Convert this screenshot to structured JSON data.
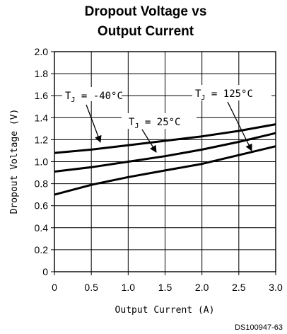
{
  "chart_data": {
    "type": "line",
    "title_line1": "Dropout Voltage vs",
    "title_line2": "Output Current",
    "xlabel": "Output Current (A)",
    "ylabel": "Dropout Voltage (V)",
    "xlim": [
      0,
      3.0
    ],
    "ylim": [
      0,
      2.0
    ],
    "x_ticks": [
      "0",
      "0.5",
      "1.0",
      "1.5",
      "2.0",
      "2.5",
      "3.0"
    ],
    "y_ticks": [
      "0",
      "0.2",
      "0.4",
      "0.6",
      "0.8",
      "1.0",
      "1.2",
      "1.4",
      "1.6",
      "1.8",
      "2.0"
    ],
    "grid": true,
    "series": [
      {
        "name": "TJ = -40°C",
        "x": [
          0,
          0.5,
          1.0,
          1.5,
          2.0,
          2.5,
          3.0
        ],
        "y": [
          0.7,
          0.79,
          0.86,
          0.92,
          0.98,
          1.06,
          1.14
        ]
      },
      {
        "name": "TJ = 25°C",
        "x": [
          0,
          0.5,
          1.0,
          1.5,
          2.0,
          2.5,
          3.0
        ],
        "y": [
          0.91,
          0.95,
          1.0,
          1.05,
          1.11,
          1.18,
          1.26
        ]
      },
      {
        "name": "TJ = 125°C",
        "x": [
          0,
          0.5,
          1.0,
          1.5,
          2.0,
          2.5,
          3.0
        ],
        "y": [
          1.08,
          1.11,
          1.15,
          1.19,
          1.23,
          1.28,
          1.34
        ]
      }
    ],
    "annotations": [
      {
        "label": "-40°C",
        "target_series": 0
      },
      {
        "label": "25°C",
        "target_series": 1
      },
      {
        "label": "125°C",
        "target_series": 2
      }
    ],
    "figure_code": "DS100947-63"
  }
}
